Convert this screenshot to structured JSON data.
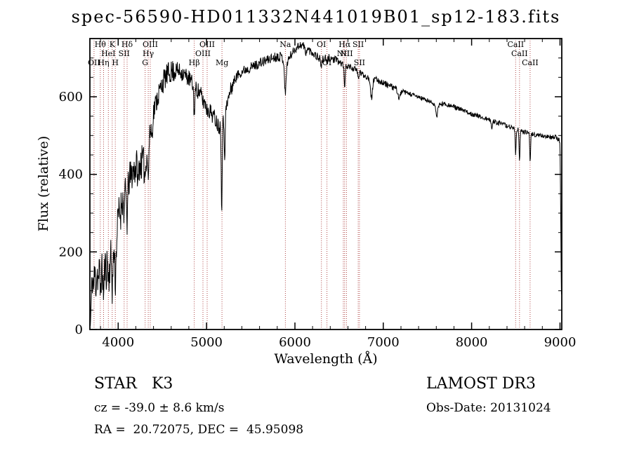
{
  "title": "spec-56590-HD011332N441019B01_sp12-183.fits",
  "annotations": {
    "object_class": "STAR   K3",
    "survey": "LAMOST DR3",
    "cz": "cz = -39.0 ± 8.6 km/s",
    "obs_date": "Obs-Date: 20131024",
    "radec": "RA =  20.72075, DEC =  45.95098"
  },
  "chart_data": {
    "type": "line",
    "title": "spec-56590-HD011332N441019B01_sp12-183.fits",
    "xlabel": "Wavelength (Å)",
    "ylabel": "Flux (relative)",
    "xlim": [
      3680,
      9020
    ],
    "ylim": [
      0,
      750
    ],
    "xticks": [
      4000,
      5000,
      6000,
      7000,
      8000,
      9000
    ],
    "yticks": [
      0,
      200,
      400,
      600
    ],
    "x_minor_step": 200,
    "y_minor_step": 50,
    "grid": false,
    "line_color": "#000000",
    "marker_color": "#b04a4a",
    "sample_step": 4,
    "spectral_lines": [
      {
        "label": "Hθ",
        "wavelength": 3798,
        "row": 0
      },
      {
        "label": "K",
        "wavelength": 3933,
        "row": 0
      },
      {
        "label": "Hδ",
        "wavelength": 4101,
        "row": 0
      },
      {
        "label": "OIII",
        "wavelength": 4363,
        "row": 0
      },
      {
        "label": "OIII",
        "wavelength": 5007,
        "row": 0
      },
      {
        "label": "Na",
        "wavelength": 5892,
        "row": 0
      },
      {
        "label": "OI",
        "wavelength": 6300,
        "row": 0
      },
      {
        "label": "Hα",
        "wavelength": 6563,
        "row": 0
      },
      {
        "label": "SII",
        "wavelength": 6716,
        "row": 0
      },
      {
        "label": "CaII",
        "wavelength": 8498,
        "row": 0
      },
      {
        "label": "HeI",
        "wavelength": 3889,
        "row": 1
      },
      {
        "label": "SII",
        "wavelength": 4068,
        "row": 1
      },
      {
        "label": "Hγ",
        "wavelength": 4340,
        "row": 1
      },
      {
        "label": "OIII",
        "wavelength": 4959,
        "row": 1
      },
      {
        "label": "NII",
        "wavelength": 6548,
        "row": 1
      },
      {
        "label": "NII",
        "wavelength": 6584,
        "row": 1
      },
      {
        "label": "CaII",
        "wavelength": 8542,
        "row": 1
      },
      {
        "label": "OII",
        "wavelength": 3727,
        "row": 2
      },
      {
        "label": "Hη",
        "wavelength": 3835,
        "row": 2
      },
      {
        "label": "H",
        "wavelength": 3968,
        "row": 2
      },
      {
        "label": "G",
        "wavelength": 4305,
        "row": 2
      },
      {
        "label": "Hβ",
        "wavelength": 4861,
        "row": 2
      },
      {
        "label": "Mg",
        "wavelength": 5175,
        "row": 2
      },
      {
        "label": "OI",
        "wavelength": 6363,
        "row": 2
      },
      {
        "label": "SII",
        "wavelength": 6731,
        "row": 2
      },
      {
        "label": "CaII",
        "wavelength": 8662,
        "row": 2
      }
    ],
    "continuum": [
      [
        3685,
        8
      ],
      [
        3692,
        40
      ],
      [
        3700,
        95
      ],
      [
        3710,
        140
      ],
      [
        3722,
        105
      ],
      [
        3735,
        150
      ],
      [
        3748,
        115
      ],
      [
        3762,
        155
      ],
      [
        3775,
        125
      ],
      [
        3790,
        160
      ],
      [
        3805,
        140
      ],
      [
        3820,
        150
      ],
      [
        3835,
        130
      ],
      [
        3850,
        165
      ],
      [
        3865,
        150
      ],
      [
        3880,
        185
      ],
      [
        3895,
        145
      ],
      [
        3910,
        175
      ],
      [
        3925,
        195
      ],
      [
        3940,
        170
      ],
      [
        3955,
        210
      ],
      [
        3970,
        190
      ],
      [
        3985,
        240
      ],
      [
        4000,
        290
      ],
      [
        4020,
        320
      ],
      [
        4040,
        335
      ],
      [
        4060,
        330
      ],
      [
        4080,
        350
      ],
      [
        4100,
        360
      ],
      [
        4125,
        385
      ],
      [
        4150,
        400
      ],
      [
        4175,
        410
      ],
      [
        4200,
        420
      ],
      [
        4230,
        430
      ],
      [
        4260,
        428
      ],
      [
        4290,
        435
      ],
      [
        4320,
        455
      ],
      [
        4350,
        490
      ],
      [
        4380,
        535
      ],
      [
        4410,
        570
      ],
      [
        4440,
        595
      ],
      [
        4470,
        615
      ],
      [
        4500,
        635
      ],
      [
        4530,
        648
      ],
      [
        4560,
        658
      ],
      [
        4590,
        663
      ],
      [
        4620,
        666
      ],
      [
        4650,
        668
      ],
      [
        4680,
        667
      ],
      [
        4710,
        664
      ],
      [
        4740,
        659
      ],
      [
        4770,
        653
      ],
      [
        4800,
        647
      ],
      [
        4830,
        638
      ],
      [
        4860,
        618
      ],
      [
        4890,
        620
      ],
      [
        4920,
        610
      ],
      [
        4950,
        600
      ],
      [
        4980,
        585
      ],
      [
        5010,
        572
      ],
      [
        5040,
        563
      ],
      [
        5070,
        553
      ],
      [
        5100,
        543
      ],
      [
        5130,
        528
      ],
      [
        5160,
        522
      ],
      [
        5190,
        535
      ],
      [
        5220,
        565
      ],
      [
        5250,
        598
      ],
      [
        5280,
        622
      ],
      [
        5310,
        640
      ],
      [
        5340,
        652
      ],
      [
        5370,
        660
      ],
      [
        5400,
        665
      ],
      [
        5430,
        669
      ],
      [
        5460,
        672
      ],
      [
        5490,
        675
      ],
      [
        5520,
        678
      ],
      [
        5550,
        681
      ],
      [
        5580,
        684
      ],
      [
        5610,
        687
      ],
      [
        5640,
        690
      ],
      [
        5670,
        693
      ],
      [
        5700,
        696
      ],
      [
        5730,
        699
      ],
      [
        5760,
        701
      ],
      [
        5790,
        703
      ],
      [
        5820,
        705
      ],
      [
        5850,
        703
      ],
      [
        5880,
        690
      ],
      [
        5910,
        688
      ],
      [
        5940,
        702
      ],
      [
        5970,
        713
      ],
      [
        6000,
        722
      ],
      [
        6030,
        729
      ],
      [
        6060,
        734
      ],
      [
        6090,
        732
      ],
      [
        6120,
        727
      ],
      [
        6150,
        722
      ],
      [
        6180,
        717
      ],
      [
        6210,
        712
      ],
      [
        6240,
        706
      ],
      [
        6270,
        700
      ],
      [
        6300,
        696
      ],
      [
        6330,
        697
      ],
      [
        6360,
        699
      ],
      [
        6390,
        700
      ],
      [
        6420,
        698
      ],
      [
        6450,
        695
      ],
      [
        6480,
        692
      ],
      [
        6510,
        688
      ],
      [
        6540,
        684
      ],
      [
        6570,
        681
      ],
      [
        6600,
        679
      ],
      [
        6630,
        676
      ],
      [
        6660,
        673
      ],
      [
        6690,
        669
      ],
      [
        6720,
        664
      ],
      [
        6750,
        660
      ],
      [
        6780,
        656
      ],
      [
        6810,
        652
      ],
      [
        6840,
        647
      ],
      [
        6870,
        641
      ],
      [
        6900,
        645
      ],
      [
        6930,
        643
      ],
      [
        6960,
        640
      ],
      [
        6990,
        637
      ],
      [
        7020,
        634
      ],
      [
        7060,
        629
      ],
      [
        7100,
        625
      ],
      [
        7150,
        620
      ],
      [
        7200,
        615
      ],
      [
        7250,
        611
      ],
      [
        7300,
        607
      ],
      [
        7350,
        603
      ],
      [
        7400,
        599
      ],
      [
        7450,
        595
      ],
      [
        7500,
        590
      ],
      [
        7550,
        585
      ],
      [
        7600,
        579
      ],
      [
        7650,
        581
      ],
      [
        7700,
        582
      ],
      [
        7750,
        578
      ],
      [
        7800,
        574
      ],
      [
        7850,
        569
      ],
      [
        7900,
        565
      ],
      [
        7950,
        560
      ],
      [
        8000,
        556
      ],
      [
        8050,
        552
      ],
      [
        8100,
        548
      ],
      [
        8150,
        544
      ],
      [
        8200,
        540
      ],
      [
        8250,
        537
      ],
      [
        8300,
        533
      ],
      [
        8350,
        529
      ],
      [
        8400,
        525
      ],
      [
        8450,
        521
      ],
      [
        8500,
        517
      ],
      [
        8550,
        513
      ],
      [
        8600,
        509
      ],
      [
        8650,
        506
      ],
      [
        8700,
        503
      ],
      [
        8750,
        501
      ],
      [
        8800,
        499
      ],
      [
        8850,
        497
      ],
      [
        8900,
        496
      ],
      [
        8940,
        497
      ],
      [
        8970,
        493
      ],
      [
        8995,
        487
      ],
      [
        9002,
        450
      ],
      [
        9007,
        330
      ],
      [
        9011,
        200
      ],
      [
        9016,
        85
      ]
    ],
    "absorption_features": [
      [
        3798,
        45,
        5
      ],
      [
        3835,
        45,
        5
      ],
      [
        3889,
        35,
        5
      ],
      [
        3933,
        70,
        6
      ],
      [
        3968,
        70,
        6
      ],
      [
        4026,
        30,
        5
      ],
      [
        4068,
        30,
        5
      ],
      [
        4101,
        80,
        6
      ],
      [
        4226,
        60,
        5
      ],
      [
        4305,
        45,
        9
      ],
      [
        4340,
        90,
        6
      ],
      [
        4383,
        45,
        5
      ],
      [
        4861,
        60,
        6
      ],
      [
        4959,
        10,
        5
      ],
      [
        5007,
        10,
        5
      ],
      [
        5172,
        220,
        5
      ],
      [
        5206,
        100,
        5
      ],
      [
        5892,
        85,
        8
      ],
      [
        6122,
        25,
        5
      ],
      [
        6300,
        22,
        5
      ],
      [
        6363,
        18,
        5
      ],
      [
        6563,
        55,
        6
      ],
      [
        6717,
        20,
        5
      ],
      [
        6867,
        45,
        10
      ],
      [
        7180,
        22,
        12
      ],
      [
        7605,
        35,
        9
      ],
      [
        8227,
        18,
        7
      ],
      [
        8498,
        65,
        5
      ],
      [
        8542,
        85,
        5
      ],
      [
        8662,
        70,
        5
      ]
    ],
    "noise": {
      "seed": 11,
      "segments": [
        [
          3680,
          3950,
          50
        ],
        [
          3950,
          4300,
          45
        ],
        [
          4300,
          4650,
          30
        ],
        [
          4650,
          5300,
          22
        ],
        [
          5300,
          5900,
          13
        ],
        [
          5900,
          6500,
          11
        ],
        [
          6500,
          7200,
          8
        ],
        [
          7200,
          8300,
          6
        ],
        [
          8300,
          9020,
          6
        ]
      ]
    }
  }
}
